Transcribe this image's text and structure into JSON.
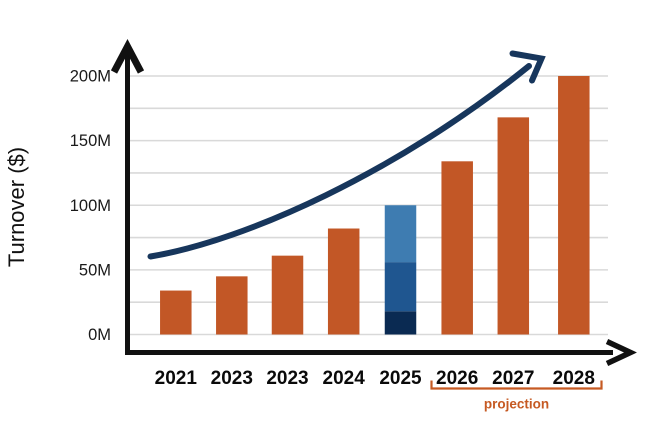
{
  "chart_data": {
    "type": "bar",
    "title": "",
    "ylabel": "Turnover ($)",
    "xlabel": "",
    "categories": [
      "2021",
      "2023",
      "2023",
      "2024",
      "2025",
      "2026",
      "2027",
      "2028"
    ],
    "values": [
      34,
      45,
      61,
      82,
      100,
      134,
      168,
      200
    ],
    "unit": "M",
    "ylim": [
      0,
      200
    ],
    "yticks": [
      0,
      50,
      100,
      150,
      200
    ],
    "ytick_labels": [
      "0M",
      "50M",
      "100M",
      "150M",
      "200M"
    ],
    "gridline_step": 25,
    "grid": true,
    "legend": "none",
    "bar_color": "#C25726",
    "stacked_bar": {
      "category": "2025",
      "index": 4,
      "segments_bottom_to_top": [
        {
          "name": "segment-dark-navy",
          "value": 18,
          "color": "#0A2A52"
        },
        {
          "name": "segment-medium-blue",
          "value": 38,
          "color": "#1F5690"
        },
        {
          "name": "segment-steel-blue",
          "value": 44,
          "color": "#3E7CB1"
        }
      ],
      "total": 100
    },
    "projection": {
      "label": "projection",
      "categories": [
        "2026",
        "2027",
        "2028"
      ],
      "color": "#C65A23"
    },
    "trend_arrow": {
      "description": "curved upward growth arrow from 2021 (~60M) to top right (~200M)",
      "color": "#17365C"
    },
    "axis_color": "#111111",
    "gridline_color": "#D9D9D9"
  }
}
